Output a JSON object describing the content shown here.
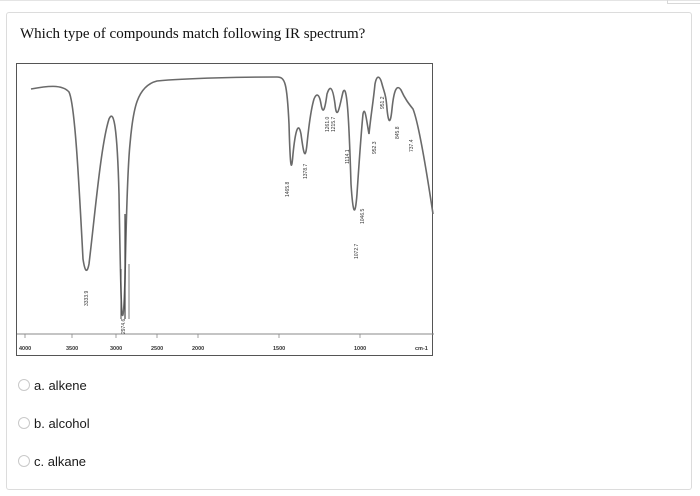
{
  "question": {
    "text": "Which type of compounds match following IR spectrum?"
  },
  "spectrum": {
    "x_ticks": [
      "4000",
      "3500",
      "3000",
      "2500",
      "2000",
      "1500",
      "1000",
      "cm-1"
    ],
    "peak_labels": [
      "3333.9",
      "2974.6",
      "1465.8",
      "1378.7",
      "1261.0",
      "1215.7",
      "1114.1",
      "1072.7",
      "1046.5",
      "952.3",
      "951.2",
      "845.8",
      "737.4"
    ]
  },
  "options": [
    {
      "label": "a. alkene"
    },
    {
      "label": "b. alcohol"
    },
    {
      "label": "c. alkane"
    }
  ]
}
